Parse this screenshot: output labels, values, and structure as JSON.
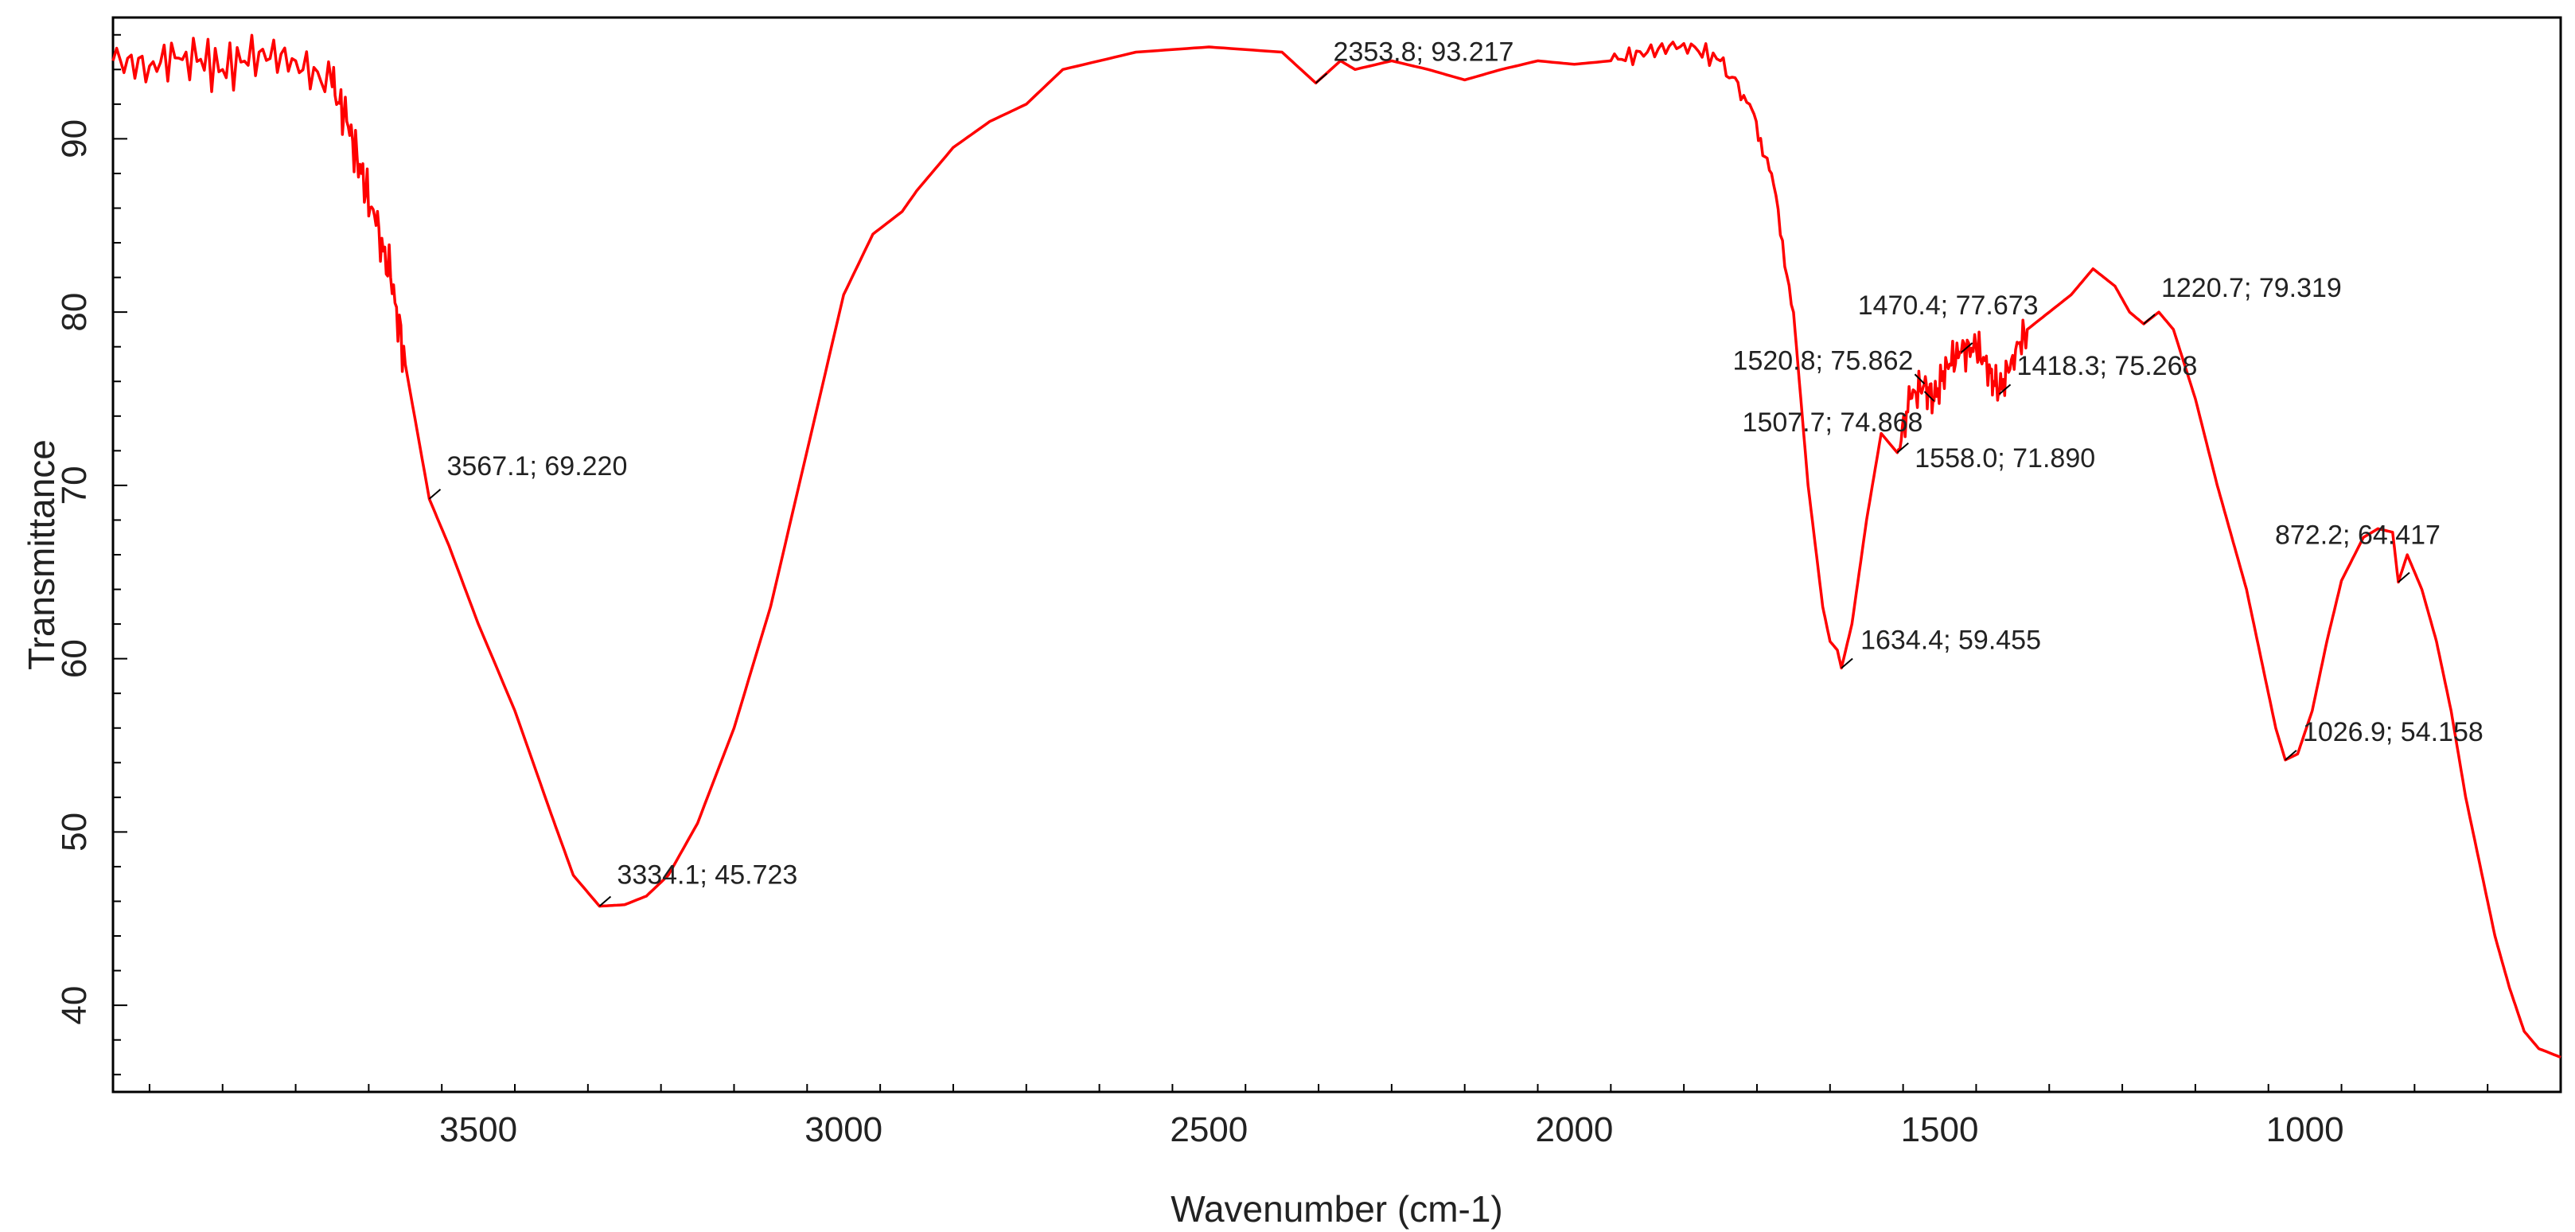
{
  "chart_data": {
    "type": "line",
    "title": "",
    "xlabel": "Wavenumber (cm-1)",
    "ylabel": "Transmittance",
    "xlim": [
      4000,
      650
    ],
    "ylim": [
      35,
      97
    ],
    "x_reversed": true,
    "grid": false,
    "line_color": "#ff0000",
    "x_ticks": [
      "3500",
      "3000",
      "2500",
      "2000",
      "1500",
      "1000"
    ],
    "y_ticks": [
      "40",
      "50",
      "60",
      "70",
      "80",
      "90"
    ],
    "series": [
      {
        "x": [
          4000,
          3950,
          3900,
          3850,
          3800,
          3750,
          3700,
          3680,
          3660,
          3640,
          3620,
          3600,
          3567.1,
          3540,
          3500,
          3450,
          3400,
          3370,
          3334.1,
          3300,
          3270,
          3240,
          3200,
          3150,
          3100,
          3050,
          3000,
          2960,
          2920,
          2900,
          2850,
          2800,
          2750,
          2700,
          2600,
          2500,
          2400,
          2353.8,
          2320,
          2300,
          2250,
          2200,
          2150,
          2100,
          2050,
          2000,
          1950,
          1900,
          1850,
          1800,
          1760,
          1730,
          1700,
          1680,
          1660,
          1650,
          1640,
          1634.4,
          1620,
          1600,
          1580,
          1558.0,
          1540,
          1520.8,
          1507.7,
          1490,
          1470.4,
          1450,
          1430,
          1418.3,
          1400,
          1380,
          1350,
          1320,
          1290,
          1260,
          1240,
          1220.7,
          1200,
          1180,
          1150,
          1120,
          1100,
          1080,
          1060,
          1040,
          1026.9,
          1010,
          990,
          970,
          950,
          920,
          900,
          880,
          872.2,
          860,
          840,
          820,
          800,
          780,
          760,
          740,
          720,
          700,
          680,
          650
        ],
        "y": [
          94.5,
          94.2,
          95.0,
          94.0,
          95.0,
          94.5,
          93.0,
          91.0,
          88.0,
          85.0,
          82.0,
          77.0,
          69.22,
          66.5,
          62.0,
          57.0,
          51.0,
          47.5,
          45.72,
          45.8,
          46.3,
          47.5,
          50.5,
          56.0,
          63.0,
          72.0,
          81.0,
          84.5,
          85.8,
          87.0,
          89.5,
          91.0,
          92.0,
          94.0,
          95.0,
          95.3,
          95.0,
          93.22,
          94.5,
          94.0,
          94.5,
          94.0,
          93.4,
          94.0,
          94.5,
          94.3,
          94.5,
          95.0,
          95.5,
          94.5,
          92.0,
          88.0,
          80.0,
          70.0,
          63.0,
          61.0,
          60.5,
          59.46,
          62.0,
          68.0,
          73.0,
          71.89,
          75.0,
          75.86,
          74.87,
          77.0,
          77.67,
          78.0,
          76.5,
          75.27,
          77.5,
          79.0,
          80.0,
          81.0,
          82.5,
          81.5,
          80.0,
          79.32,
          80.0,
          79.0,
          75.0,
          70.0,
          67.0,
          64.0,
          60.0,
          56.0,
          54.16,
          54.5,
          57.0,
          61.0,
          64.5,
          67.0,
          67.5,
          67.3,
          64.42,
          66.0,
          64.0,
          61.0,
          57.0,
          52.0,
          48.0,
          44.0,
          41.0,
          38.5,
          37.5,
          37.0
        ]
      }
    ],
    "annotations": [
      {
        "label": "3567.1; 69.220",
        "x": 3567.1,
        "y": 69.22
      },
      {
        "label": "3334.1; 45.723",
        "x": 3334.1,
        "y": 45.723
      },
      {
        "label": "2353.8; 93.217",
        "x": 2353.8,
        "y": 93.217
      },
      {
        "label": "1634.4; 59.455",
        "x": 1634.4,
        "y": 59.455
      },
      {
        "label": "1520.8; 75.862",
        "x": 1520.8,
        "y": 75.862
      },
      {
        "label": "1507.7; 74.868",
        "x": 1507.7,
        "y": 74.868
      },
      {
        "label": "1558.0; 71.890",
        "x": 1558.0,
        "y": 71.89
      },
      {
        "label": "1470.4; 77.673",
        "x": 1470.4,
        "y": 77.673
      },
      {
        "label": "1418.3; 75.268",
        "x": 1418.3,
        "y": 75.268
      },
      {
        "label": "1220.7; 79.319",
        "x": 1220.7,
        "y": 79.319
      },
      {
        "label": "1026.9; 54.158",
        "x": 1026.9,
        "y": 54.158
      },
      {
        "label": "872.2; 64.417",
        "x": 872.2,
        "y": 64.417
      }
    ]
  }
}
